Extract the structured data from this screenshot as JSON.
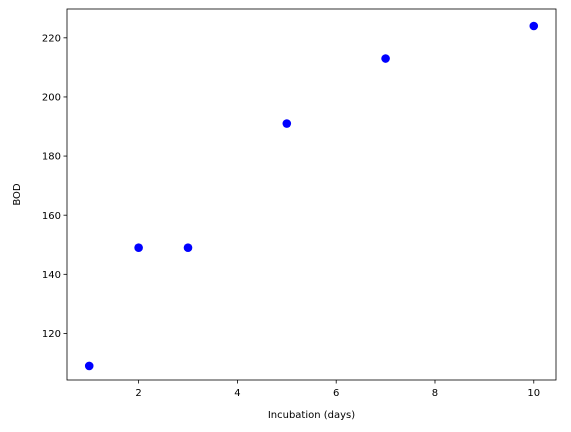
{
  "chart_data": {
    "type": "scatter",
    "title": "",
    "xlabel": "Incubation (days)",
    "ylabel": "BOD",
    "xlim": [
      0.55,
      10.45
    ],
    "ylim": [
      104.25,
      229.75
    ],
    "x_ticks": [
      2,
      4,
      6,
      8,
      10
    ],
    "y_ticks": [
      120,
      140,
      160,
      180,
      200,
      220
    ],
    "grid": false,
    "series": [
      {
        "color": "#0000ff",
        "points": [
          {
            "x": 1,
            "y": 109
          },
          {
            "x": 2,
            "y": 149
          },
          {
            "x": 3,
            "y": 149
          },
          {
            "x": 5,
            "y": 191
          },
          {
            "x": 7,
            "y": 213
          },
          {
            "x": 10,
            "y": 224
          }
        ]
      }
    ]
  }
}
